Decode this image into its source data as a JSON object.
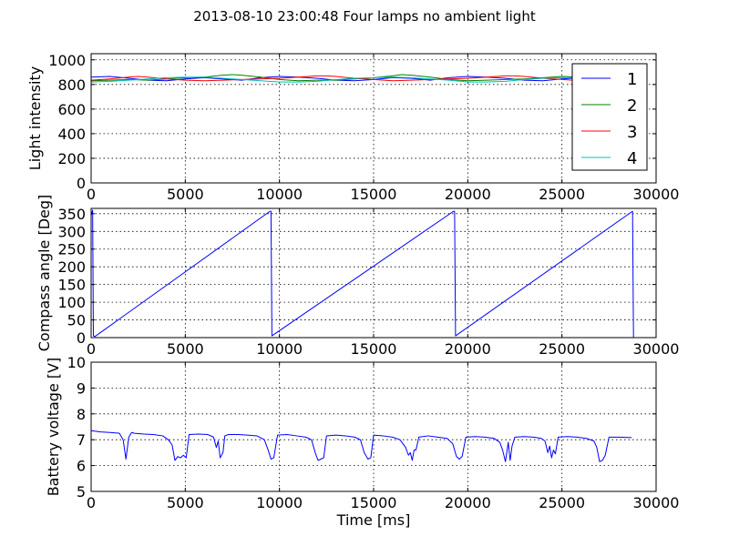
{
  "chart_data": {
    "title": "2013-08-10 23:00:48 Four lamps no ambient light",
    "type": "line",
    "panels": [
      {
        "id": "light",
        "ylabel": "Light intensity",
        "xlim": [
          0,
          30000
        ],
        "ylim": [
          0,
          1050
        ],
        "xticks": [
          0,
          5000,
          10000,
          15000,
          20000,
          25000,
          30000
        ],
        "yticks": [
          0,
          200,
          400,
          600,
          800,
          1000
        ],
        "grid": true,
        "legend": {
          "placement": "top-right",
          "entries": [
            "1",
            "2",
            "3",
            "4"
          ]
        },
        "series": [
          {
            "name": "1",
            "color": "#0000ff",
            "x": [
              0,
              1000,
              2000,
              3000,
              4000,
              5000,
              6000,
              7000,
              8000,
              9000,
              10000,
              11000,
              12000,
              13000,
              14000,
              15000,
              16000,
              17000,
              18000,
              19000,
              20000,
              21000,
              22000,
              23000,
              24000,
              25000,
              26000,
              27000,
              28000,
              28700
            ],
            "y": [
              860,
              865,
              850,
              835,
              830,
              845,
              855,
              845,
              835,
              855,
              865,
              860,
              850,
              835,
              830,
              840,
              855,
              850,
              835,
              855,
              865,
              860,
              850,
              835,
              830,
              845,
              855,
              845,
              840,
              860
            ]
          },
          {
            "name": "2",
            "color": "#008000",
            "x": [
              0,
              1000,
              2000,
              3000,
              4000,
              5000,
              6000,
              7000,
              7500,
              8000,
              9000,
              10000,
              11000,
              12000,
              13000,
              14000,
              15000,
              16000,
              16500,
              17000,
              18000,
              19000,
              20000,
              21000,
              22000,
              23000,
              24000,
              25000,
              26000,
              27000,
              28000,
              28700
            ],
            "y": [
              830,
              835,
              840,
              835,
              845,
              855,
              860,
              875,
              880,
              875,
              860,
              840,
              830,
              835,
              835,
              845,
              855,
              870,
              880,
              875,
              860,
              840,
              830,
              835,
              840,
              845,
              855,
              865,
              860,
              850,
              845,
              840
            ]
          },
          {
            "name": "3",
            "color": "#ff0000",
            "x": [
              0,
              1000,
              2000,
              2500,
              3000,
              4000,
              5000,
              6000,
              7000,
              8000,
              9000,
              10000,
              11000,
              12000,
              12500,
              13000,
              14000,
              15000,
              16000,
              17000,
              18000,
              19000,
              20000,
              21000,
              22000,
              22500,
              23000,
              24000,
              25000,
              26000,
              27000,
              28000,
              28700
            ],
            "y": [
              835,
              845,
              860,
              865,
              860,
              845,
              835,
              830,
              835,
              840,
              845,
              850,
              860,
              870,
              870,
              865,
              850,
              840,
              830,
              835,
              840,
              845,
              850,
              860,
              870,
              870,
              865,
              850,
              840,
              830,
              835,
              840,
              845
            ]
          },
          {
            "name": "4",
            "color": "#00bfbf",
            "x": [
              0,
              1000,
              2000,
              3000,
              4000,
              5000,
              6000,
              7000,
              8000,
              9000,
              10000,
              11000,
              12000,
              13000,
              14000,
              15000,
              16000,
              17000,
              18000,
              19000,
              20000,
              21000,
              22000,
              23000,
              24000,
              25000,
              26000,
              27000,
              28000,
              28700
            ],
            "y": [
              820,
              825,
              835,
              845,
              855,
              860,
              860,
              850,
              840,
              830,
              820,
              820,
              825,
              840,
              850,
              855,
              860,
              855,
              845,
              835,
              820,
              820,
              825,
              840,
              850,
              855,
              860,
              855,
              845,
              835
            ]
          }
        ]
      },
      {
        "id": "compass",
        "ylabel": "Compass angle [Deg]",
        "xlim": [
          0,
          30000
        ],
        "ylim": [
          0,
          365
        ],
        "xticks": [
          0,
          5000,
          10000,
          15000,
          20000,
          25000,
          30000
        ],
        "yticks": [
          0,
          50,
          100,
          150,
          200,
          250,
          300,
          350
        ],
        "grid": true,
        "series": [
          {
            "name": "",
            "color": "#0000ff",
            "x": [
              0,
              80,
              120,
              200,
              9500,
              9550,
              9600,
              19250,
              19300,
              19350,
              28750,
              28800
            ],
            "y": [
              345,
              360,
              5,
              3,
              357,
              357,
              5,
              357,
              357,
              5,
              357,
              0
            ]
          }
        ]
      },
      {
        "id": "battery",
        "ylabel": "Battery voltage [V]",
        "xlabel": "Time [ms]",
        "xlim": [
          0,
          30000
        ],
        "ylim": [
          5,
          10
        ],
        "xticks": [
          0,
          5000,
          10000,
          15000,
          20000,
          25000,
          30000
        ],
        "yticks": [
          5,
          6,
          7,
          8,
          9,
          10
        ],
        "grid": true,
        "series": [
          {
            "name": "",
            "color": "#0000ff",
            "x": [
              0,
              500,
              1000,
              1500,
              1700,
              1850,
              2000,
              2150,
              2300,
              2800,
              3300,
              3800,
              4100,
              4300,
              4450,
              4600,
              4750,
              4900,
              5050,
              5200,
              5700,
              6200,
              6500,
              6650,
              6750,
              6850,
              7000,
              7100,
              7300,
              7800,
              8300,
              8800,
              9200,
              9400,
              9550,
              9700,
              9900,
              10400,
              10900,
              11400,
              11700,
              11900,
              12050,
              12200,
              12350,
              12500,
              13000,
              13500,
              14000,
              14300,
              14500,
              14700,
              14850,
              15000,
              15500,
              16000,
              16400,
              16700,
              16850,
              16950,
              17050,
              17150,
              17250,
              17400,
              17900,
              18400,
              18900,
              19200,
              19400,
              19550,
              19700,
              19900,
              20400,
              20900,
              21400,
              21700,
              21850,
              22000,
              22150,
              22250,
              22350,
              22500,
              23000,
              23500,
              23900,
              24100,
              24250,
              24350,
              24450,
              24550,
              24650,
              24800,
              25300,
              25800,
              26300,
              26700,
              26850,
              27000,
              27150,
              27300,
              27500,
              28000,
              28700
            ],
            "y": [
              7.35,
              7.3,
              7.28,
              7.25,
              7.0,
              6.25,
              7.1,
              7.28,
              7.25,
              7.22,
              7.2,
              7.15,
              7.0,
              6.8,
              6.2,
              6.35,
              6.3,
              6.4,
              6.3,
              7.2,
              7.22,
              7.2,
              7.1,
              6.7,
              6.95,
              6.3,
              6.5,
              7.15,
              7.2,
              7.2,
              7.18,
              7.15,
              7.0,
              6.6,
              6.25,
              6.3,
              7.18,
              7.2,
              7.15,
              7.1,
              7.0,
              6.5,
              6.2,
              6.25,
              6.3,
              7.15,
              7.18,
              7.15,
              7.1,
              7.0,
              6.5,
              6.25,
              6.3,
              7.18,
              7.15,
              7.1,
              7.0,
              6.7,
              6.4,
              6.5,
              6.2,
              6.6,
              6.6,
              7.1,
              7.15,
              7.1,
              7.05,
              6.85,
              6.35,
              6.25,
              6.35,
              7.1,
              7.12,
              7.1,
              7.05,
              6.9,
              6.6,
              6.15,
              6.9,
              6.2,
              6.75,
              7.1,
              7.12,
              7.1,
              7.05,
              6.95,
              6.5,
              6.75,
              6.3,
              6.6,
              6.45,
              7.1,
              7.12,
              7.1,
              7.05,
              6.95,
              6.7,
              6.15,
              6.2,
              6.4,
              7.1,
              7.1,
              7.08
            ]
          }
        ]
      }
    ]
  }
}
